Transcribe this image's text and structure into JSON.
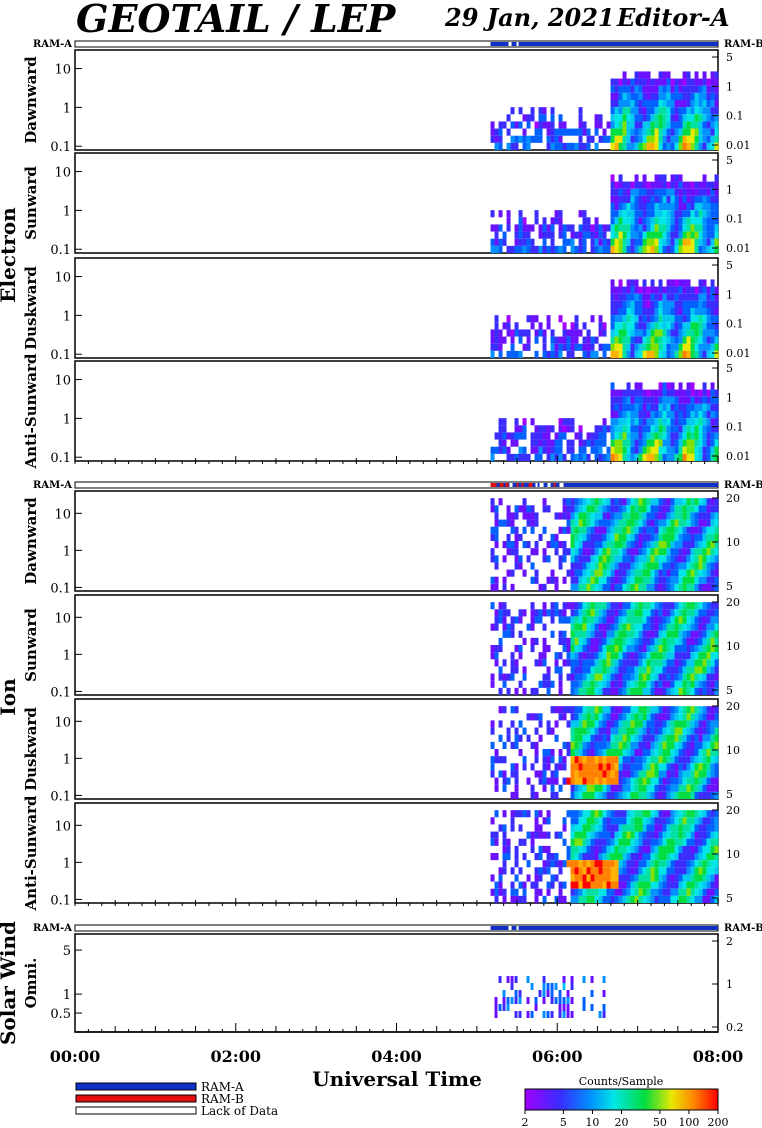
{
  "header": {
    "title": "GEOTAIL / LEP",
    "date": "29 Jan, 2021",
    "editor": "Editor-A"
  },
  "mode_labels": {
    "left": "RAM-A",
    "right": "RAM-B"
  },
  "groups": [
    {
      "name": "Electron",
      "panels": [
        "Dawnward",
        "Sunward",
        "Duskward",
        "Anti-Sunward"
      ]
    },
    {
      "name": "Ion",
      "panels": [
        "Dawnward",
        "Sunward",
        "Duskward",
        "Anti-Sunward"
      ]
    },
    {
      "name": "Solar Wind",
      "panels": [
        "Omni."
      ]
    }
  ],
  "chart_data": {
    "type": "heatmap",
    "title": "GEOTAIL / LEP  29 Jan, 2021",
    "xlabel": "Universal Time",
    "x_ticks": [
      "00:00",
      "02:00",
      "04:00",
      "06:00",
      "08:00"
    ],
    "xlim_hours": [
      0,
      8
    ],
    "data_start_hours": 5.17,
    "electron": {
      "left_ticks": [
        "10",
        "1",
        "0.1"
      ],
      "right_ticks": [
        "5",
        "1",
        "0.1",
        "0.01"
      ],
      "ylim": [
        0.08,
        30
      ],
      "scale": "log"
    },
    "ion": {
      "left_ticks": [
        "10",
        "1",
        "0.1"
      ],
      "right_ticks": [
        "20",
        "10",
        "5"
      ],
      "ylim": [
        0.08,
        40
      ],
      "scale": "log"
    },
    "solar_wind": {
      "left_ticks": [
        "5",
        "1",
        "0.5"
      ],
      "right_ticks": [
        "2",
        "1",
        "0.2"
      ],
      "ylim": [
        0.25,
        9
      ],
      "scale": "log"
    },
    "colorbar": {
      "label": "Counts/Sample",
      "ticks": [
        "2",
        "5",
        "10",
        "20",
        "50",
        "100",
        "200"
      ],
      "scale": "log"
    },
    "legend": [
      {
        "label": "RAM-A",
        "color": "#1030c8"
      },
      {
        "label": "RAM-B",
        "color": "#e01010"
      },
      {
        "label": "Lack of Data",
        "color": "#ffffff"
      }
    ]
  }
}
